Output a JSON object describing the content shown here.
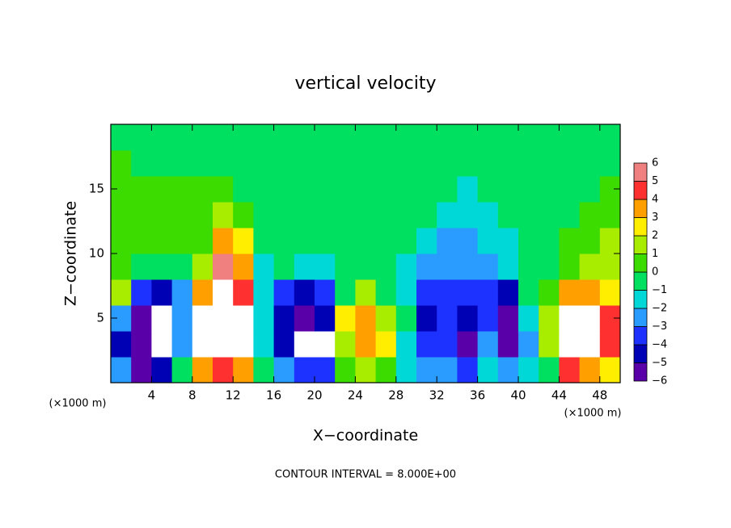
{
  "chart_data": {
    "type": "heatmap",
    "title": "vertical velocity",
    "x_label": "X−coordinate",
    "y_label": "Z−coordinate",
    "x_unit_left": "(×1000 m)",
    "x_unit_right": "(×1000 m)",
    "footer": "CONTOUR INTERVAL = 8.000E+00",
    "xlim": [
      0,
      50
    ],
    "ylim": [
      0,
      20
    ],
    "xticks": [
      4,
      8,
      12,
      16,
      20,
      24,
      28,
      32,
      36,
      40,
      44,
      48
    ],
    "yticks": [
      5,
      10,
      15
    ],
    "x": [
      1,
      3,
      5,
      7,
      9,
      11,
      13,
      15,
      17,
      19,
      21,
      23,
      25,
      27,
      29,
      31,
      33,
      35,
      37,
      39,
      41,
      43,
      45,
      47,
      49
    ],
    "y": [
      1,
      3,
      5,
      7,
      9,
      11,
      13,
      15,
      17,
      19
    ],
    "values": [
      [
        -2,
        -4,
        -2,
        2,
        1,
        1,
        0.5,
        0.5,
        0.5,
        0
      ],
      [
        -5,
        -6,
        -6,
        -3,
        0,
        1,
        0.5,
        0.5,
        0,
        0
      ],
      [
        -4,
        8,
        8,
        -4,
        0,
        0.5,
        0.5,
        0.5,
        0,
        0
      ],
      [
        0,
        -2,
        -2,
        -2,
        0,
        1,
        0.5,
        0.5,
        0,
        0
      ],
      [
        4,
        8,
        8,
        4,
        2,
        1,
        1,
        0.5,
        0,
        0
      ],
      [
        5,
        8,
        8,
        8,
        6,
        4,
        2,
        0.5,
        0,
        0
      ],
      [
        4,
        8,
        8,
        5,
        4,
        3,
        1,
        0,
        0,
        0
      ],
      [
        0,
        -1,
        -1,
        -1,
        -1,
        0,
        0,
        0,
        0,
        0
      ],
      [
        -2,
        -4,
        -4,
        -3,
        0,
        0,
        0,
        0,
        0,
        0
      ],
      [
        -3,
        8,
        -5,
        -4,
        -1,
        0,
        0,
        0,
        0,
        0
      ],
      [
        -3,
        8,
        -4,
        -3,
        -1,
        0,
        0,
        0,
        0,
        0
      ],
      [
        1,
        2,
        3,
        0,
        0,
        0,
        0,
        0,
        0,
        0
      ],
      [
        2,
        4,
        4,
        2,
        0,
        0,
        0,
        0,
        0,
        0
      ],
      [
        1,
        3,
        2,
        0,
        0,
        0,
        0,
        0,
        0,
        0
      ],
      [
        -1,
        -1,
        0,
        -1,
        -1,
        0,
        0,
        0,
        0,
        0
      ],
      [
        -2,
        -3,
        -4,
        -3,
        -2,
        -1,
        0,
        0,
        0,
        0
      ],
      [
        -2,
        -3,
        -3,
        -3,
        -2,
        -2,
        -1,
        0,
        0,
        0
      ],
      [
        -3,
        -6,
        -4,
        -3,
        -2,
        -2,
        -1,
        -1,
        0,
        0
      ],
      [
        -1,
        -2,
        -3,
        -3,
        -2,
        -1,
        -1,
        0,
        0,
        0
      ],
      [
        -2,
        -5,
        -6,
        -4,
        -1,
        -1,
        0,
        0,
        0,
        0
      ],
      [
        -1,
        -2,
        -1,
        0,
        0,
        0,
        0,
        0,
        0,
        0
      ],
      [
        0,
        2,
        2,
        1,
        0,
        0,
        0,
        0,
        0,
        0
      ],
      [
        5,
        8,
        8,
        4,
        1,
        1,
        0,
        0,
        0,
        0
      ],
      [
        4,
        8,
        8,
        4,
        2,
        1,
        1,
        0,
        0,
        0
      ],
      [
        3,
        5,
        5,
        3,
        2,
        2,
        1,
        1,
        0,
        0
      ]
    ],
    "colorbar": {
      "levels": [
        {
          "value": -6,
          "label": "−6"
        },
        {
          "value": -5,
          "label": "−5"
        },
        {
          "value": -4,
          "label": "−4"
        },
        {
          "value": -3,
          "label": "−3"
        },
        {
          "value": -2,
          "label": "−2"
        },
        {
          "value": -1,
          "label": "−1"
        },
        0,
        1,
        2,
        3,
        4,
        5,
        6
      ],
      "colors": [
        "#5a00a8",
        "#0000b4",
        "#1e32ff",
        "#2a9cff",
        "#00d8d8",
        "#00e060",
        "#3cdc00",
        "#a8ec00",
        "#ffee00",
        "#ffa000",
        "#ff3030",
        "#f08080"
      ],
      "over_color": "#ffffff",
      "under_color": "#5a00a8"
    }
  }
}
